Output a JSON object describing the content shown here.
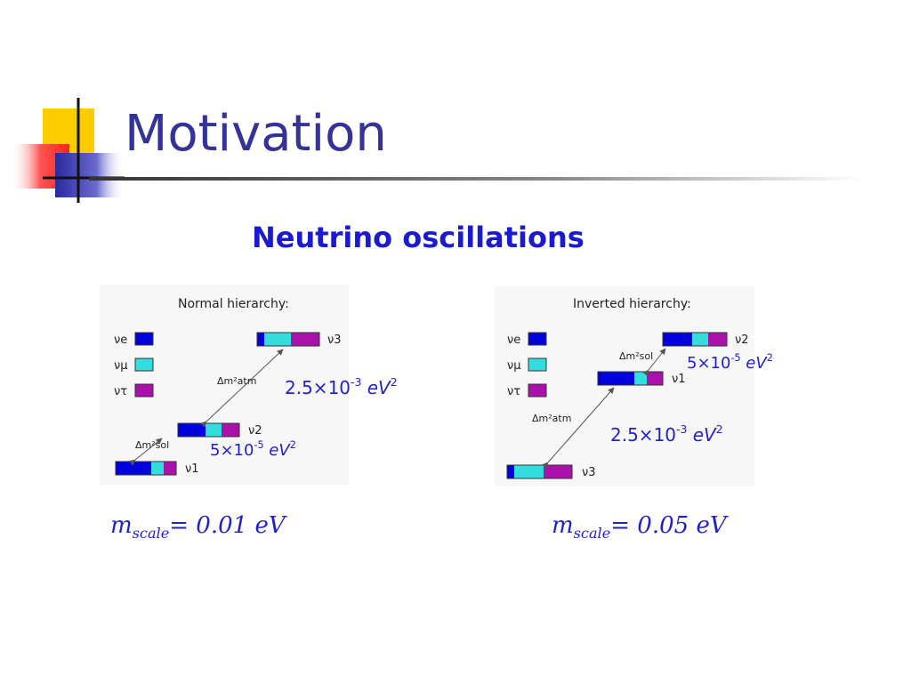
{
  "slide": {
    "title": "Motivation",
    "subtitle": "Neutrino  oscillations"
  },
  "colors": {
    "title": "#333399",
    "text_blue": "#2222cc",
    "nu_e": "#0000dd",
    "nu_mu": "#33dddd",
    "nu_tau": "#aa11aa",
    "logo_yellow": "#ffcc00",
    "logo_red": "#ff3333",
    "logo_blue": "#3333aa"
  },
  "normal": {
    "heading": "Normal hierarchy:",
    "legend": {
      "e": "νe",
      "mu": "νμ",
      "tau": "ντ"
    },
    "levels": {
      "nu3": "ν3",
      "nu2": "ν2",
      "nu1": "ν1"
    },
    "dm_atm_label": "Δm²atm",
    "dm_sol_label": "Δm²sol",
    "atm_value": {
      "mant": "2.5×10",
      "exp": "-3",
      "unit": " eV",
      "uexp": "2"
    },
    "sol_value": {
      "mant": "5×10",
      "exp": "-5",
      "unit": " eV",
      "uexp": "2"
    },
    "mscale": {
      "m": "m",
      "sub": "scale",
      "rest": "= 0.01 eV"
    }
  },
  "inverted": {
    "heading": "Inverted hierarchy:",
    "legend": {
      "e": "νe",
      "mu": "νμ",
      "tau": "ντ"
    },
    "levels": {
      "nu2": "ν2",
      "nu1": "ν1",
      "nu3": "ν3"
    },
    "dm_atm_label": "Δm²atm",
    "dm_sol_label": "Δm²sol",
    "atm_value": {
      "mant": "2.5×10",
      "exp": "-3",
      "unit": " eV",
      "uexp": "2"
    },
    "sol_value": {
      "mant": "5×10",
      "exp": "-5",
      "unit": " eV",
      "uexp": "2"
    },
    "mscale": {
      "m": "m",
      "sub": "scale",
      "rest": "= 0.05 eV"
    }
  }
}
